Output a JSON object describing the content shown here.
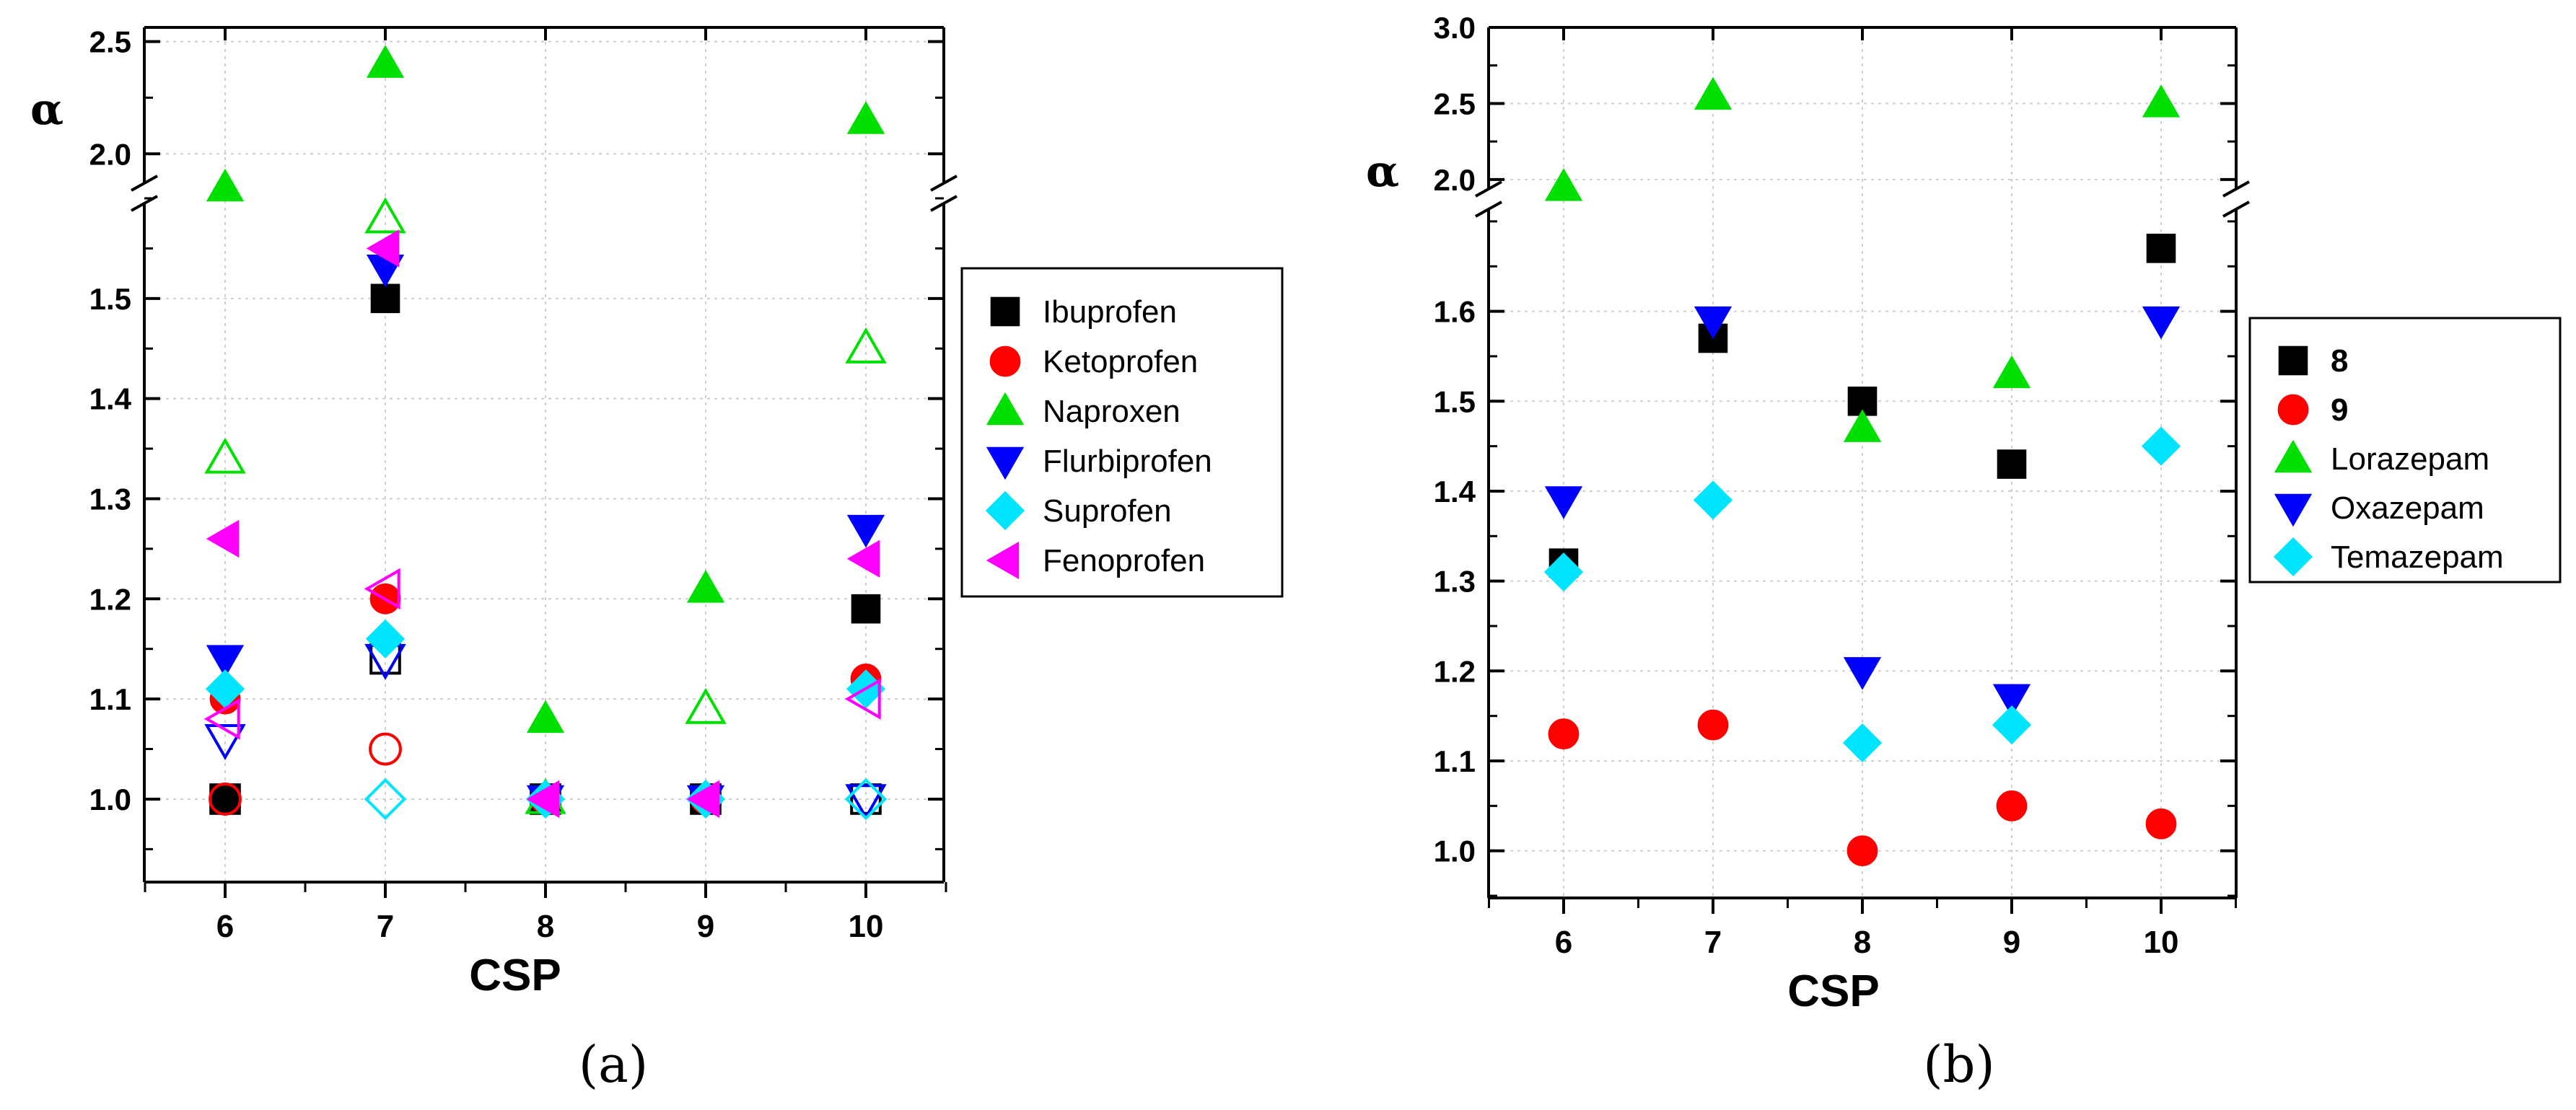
{
  "colors": {
    "black": "#000000",
    "red": "#ff0000",
    "green": "#00e000",
    "blue": "#0000ff",
    "cyan": "#00e5ff",
    "magenta": "#ff00ff",
    "grid": "#cfcfcf"
  },
  "chart_data": [
    {
      "panel_label": "(a)",
      "type": "scatter",
      "xlabel": "CSP",
      "ylabel": "α",
      "x_categories": [
        6,
        7,
        8,
        9,
        10
      ],
      "x_ticks": [
        "6",
        "7",
        "8",
        "9",
        "10"
      ],
      "axis_break": {
        "lower": [
          0.92,
          1.6
        ],
        "upper": [
          1.85,
          2.55
        ]
      },
      "y_ticks_lower": [
        "1.0",
        "1.1",
        "1.2",
        "1.3",
        "1.4",
        "1.5"
      ],
      "y_ticks_upper": [
        "2.0",
        "2.5"
      ],
      "legend_position": "right",
      "note": "Filled markers and open (hollow) markers are two value sets per compound; values read from the plot.",
      "series": [
        {
          "name": "Ibuprofen",
          "marker": "square",
          "color": "black",
          "filled": {
            "x": [
              6,
              7,
              8,
              9,
              10
            ],
            "y": [
              1.0,
              1.5,
              1.0,
              1.0,
              1.19
            ]
          },
          "open": {
            "x": [
              6,
              7,
              8,
              9,
              10
            ],
            "y": [
              1.0,
              1.14,
              1.0,
              1.0,
              1.0
            ]
          }
        },
        {
          "name": "Ketoprofen",
          "marker": "circle",
          "color": "red",
          "filled": {
            "x": [
              6,
              7,
              8,
              9,
              10
            ],
            "y": [
              1.1,
              1.2,
              1.0,
              1.0,
              1.12
            ]
          },
          "open": {
            "x": [
              6,
              7
            ],
            "y": [
              1.0,
              1.05
            ]
          }
        },
        {
          "name": "Naproxen",
          "marker": "triangle-up",
          "color": "green",
          "filled": {
            "x": [
              6,
              7,
              8,
              9,
              10
            ],
            "y": [
              1.85,
              2.4,
              1.08,
              1.21,
              2.15
            ]
          },
          "open": {
            "x": [
              6,
              7,
              8,
              9,
              10
            ],
            "y": [
              1.34,
              1.58,
              1.0,
              1.09,
              1.45
            ]
          }
        },
        {
          "name": "Flurbiprofen",
          "marker": "triangle-down",
          "color": "blue",
          "filled": {
            "x": [
              6,
              7,
              8,
              9,
              10
            ],
            "y": [
              1.14,
              1.53,
              1.0,
              1.0,
              1.27
            ]
          },
          "open": {
            "x": [
              6,
              7,
              10
            ],
            "y": [
              1.06,
              1.14,
              1.0
            ]
          }
        },
        {
          "name": "Suprofen",
          "marker": "diamond",
          "color": "cyan",
          "filled": {
            "x": [
              6,
              7,
              8,
              9,
              10
            ],
            "y": [
              1.11,
              1.16,
              1.0,
              1.0,
              1.11
            ]
          },
          "open": {
            "x": [
              7,
              10
            ],
            "y": [
              1.0,
              1.0
            ]
          }
        },
        {
          "name": "Fenoprofen",
          "marker": "triangle-left",
          "color": "magenta",
          "filled": {
            "x": [
              6,
              7,
              8,
              9,
              10
            ],
            "y": [
              1.26,
              1.55,
              1.0,
              1.0,
              1.24
            ]
          },
          "open": {
            "x": [
              6,
              7,
              10
            ],
            "y": [
              1.08,
              1.21,
              1.1
            ]
          }
        }
      ]
    },
    {
      "panel_label": "(b)",
      "type": "scatter",
      "xlabel": "CSP",
      "ylabel": "α",
      "x_categories": [
        6,
        7,
        8,
        9,
        10
      ],
      "x_ticks": [
        "6",
        "7",
        "8",
        "9",
        "10"
      ],
      "axis_break": {
        "lower": [
          0.95,
          1.72
        ],
        "upper": [
          1.9,
          3.0
        ]
      },
      "y_ticks_lower": [
        "1.0",
        "1.1",
        "1.2",
        "1.3",
        "1.4",
        "1.5",
        "1.6"
      ],
      "y_ticks_upper": [
        "2.0",
        "2.5",
        "3.0"
      ],
      "legend_position": "right",
      "series": [
        {
          "name": "8",
          "bold": true,
          "marker": "square",
          "color": "black",
          "filled": {
            "x": [
              6,
              7,
              8,
              9,
              10
            ],
            "y": [
              1.32,
              1.57,
              1.5,
              1.43,
              1.67
            ]
          }
        },
        {
          "name": "9",
          "bold": true,
          "marker": "circle",
          "color": "red",
          "filled": {
            "x": [
              6,
              7,
              8,
              9,
              10
            ],
            "y": [
              1.13,
              1.14,
              1.0,
              1.05,
              1.03
            ]
          }
        },
        {
          "name": "Lorazepam",
          "marker": "triangle-up",
          "color": "green",
          "filled": {
            "x": [
              6,
              7,
              8,
              9,
              10
            ],
            "y": [
              1.95,
              2.55,
              1.47,
              1.53,
              2.5
            ]
          }
        },
        {
          "name": "Oxazepam",
          "marker": "triangle-down",
          "color": "blue",
          "filled": {
            "x": [
              6,
              7,
              8,
              9,
              10
            ],
            "y": [
              1.39,
              1.59,
              1.2,
              1.17,
              1.59
            ]
          }
        },
        {
          "name": "Temazepam",
          "marker": "diamond",
          "color": "cyan",
          "filled": {
            "x": [
              6,
              7,
              8,
              9,
              10
            ],
            "y": [
              1.31,
              1.39,
              1.12,
              1.14,
              1.45
            ]
          }
        }
      ]
    }
  ]
}
